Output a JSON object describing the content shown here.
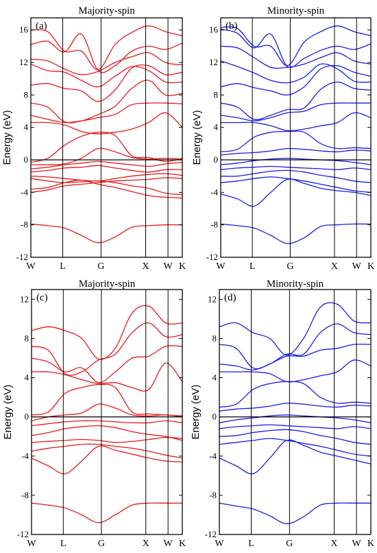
{
  "colors": {
    "majority": "#e8181b",
    "minority": "#1a1ae8",
    "axis": "#000000"
  },
  "chart_data": [
    {
      "type": "line",
      "panel": "(a)",
      "title": "Majority-spin",
      "ylabel": "Energy (eV)",
      "ylim": [
        -12,
        17.5
      ],
      "yticks": [
        -12,
        -8,
        -4,
        0,
        4,
        8,
        12,
        16
      ],
      "kpoints": [
        "W",
        "L",
        "G",
        "X",
        "W",
        "K"
      ],
      "kpos": [
        0,
        1,
        2.2,
        3.6,
        4.3,
        4.75
      ],
      "color": "majority",
      "series": [
        {
          "values": [
            -7.9,
            -8.1,
            -8.4,
            -9.3,
            -10.2,
            -9.5,
            -8.3,
            -8.1,
            -8.0,
            -8.0
          ]
        },
        {
          "values": [
            -4.0,
            -3.7,
            -3.2,
            -3.0,
            -2.8,
            -2.6,
            -2.5,
            -2.4,
            -2.2,
            -2.3
          ]
        },
        {
          "values": [
            -3.6,
            -3.4,
            -2.8,
            -2.5,
            -3.0,
            -3.4,
            -3.9,
            -4.4,
            -4.6,
            -4.7
          ]
        },
        {
          "values": [
            -2.3,
            -2.6,
            -2.8,
            -2.7,
            -2.6,
            -2.8,
            -3.2,
            -3.5,
            -4.1,
            -4.3
          ]
        },
        {
          "values": [
            -2.0,
            -2.1,
            -2.3,
            -2.5,
            -2.6,
            -2.3,
            -2.0,
            -1.8,
            -1.7,
            -1.9
          ]
        },
        {
          "values": [
            -1.5,
            -1.3,
            -1.0,
            -0.9,
            -0.7,
            -1.0,
            -1.3,
            -1.5,
            -1.2,
            -1.2
          ]
        },
        {
          "values": [
            -1.1,
            -0.9,
            -0.6,
            -0.4,
            -0.2,
            -0.4,
            -0.6,
            -0.8,
            -0.5,
            -0.3
          ]
        },
        {
          "values": [
            -0.6,
            -0.6,
            -0.5,
            0.2,
            1.4,
            1.0,
            0.3,
            0.1,
            0.2,
            0.1
          ]
        },
        {
          "values": [
            -0.3,
            0.2,
            1.8,
            2.9,
            3.4,
            3.0,
            0.5,
            0.3,
            -0.2,
            0.2
          ]
        },
        {
          "values": [
            4.6,
            4.6,
            4.3,
            3.5,
            3.2,
            3.4,
            3.8,
            4.6,
            5.8,
            4.0
          ]
        },
        {
          "values": [
            5.5,
            5.0,
            4.6,
            4.8,
            5.2,
            5.6,
            6.8,
            7.0,
            7.0,
            6.9
          ]
        },
        {
          "values": [
            7.0,
            6.5,
            4.7,
            4.8,
            5.6,
            6.6,
            8.8,
            9.8,
            8.0,
            8.2
          ]
        },
        {
          "values": [
            9.2,
            9.4,
            8.8,
            8.5,
            7.2,
            8.6,
            11.3,
            11.6,
            10.5,
            10.8
          ]
        },
        {
          "values": [
            11.8,
            11.0,
            10.8,
            9.8,
            9.0,
            10.3,
            11.5,
            11.0,
            9.6,
            9.6
          ]
        },
        {
          "values": [
            12.4,
            12.2,
            11.2,
            10.5,
            10.9,
            12.0,
            12.7,
            13.2,
            12.0,
            11.7
          ]
        },
        {
          "values": [
            14.2,
            14.6,
            13.3,
            15.5,
            11.0,
            11.6,
            13.4,
            14.0,
            13.6,
            14.4
          ]
        },
        {
          "values": [
            16.0,
            15.8,
            13.4,
            13.4,
            11.1,
            14.2,
            15.7,
            16.5,
            15.8,
            15.3
          ]
        }
      ]
    },
    {
      "type": "line",
      "panel": "(b)",
      "title": "Minority-spin",
      "ylabel": "Energy (eV)",
      "ylim": [
        -12,
        17.5
      ],
      "yticks": [
        -12,
        -8,
        -4,
        0,
        4,
        8,
        12,
        16
      ],
      "kpoints": [
        "W",
        "L",
        "G",
        "X",
        "W",
        "K"
      ],
      "kpos": [
        0,
        1,
        2.2,
        3.6,
        4.3,
        4.75
      ],
      "color": "minority",
      "series": [
        {
          "values": [
            -7.9,
            -8.1,
            -8.4,
            -9.3,
            -10.3,
            -9.6,
            -8.2,
            -8.0,
            -7.9,
            -7.9
          ]
        },
        {
          "values": [
            -4.2,
            -4.8,
            -5.7,
            -4.0,
            -2.4,
            -2.9,
            -3.5,
            -3.8,
            -4.0,
            -4.4
          ]
        },
        {
          "values": [
            -2.8,
            -2.6,
            -2.3,
            -2.1,
            -2.3,
            -2.6,
            -3.0,
            -3.4,
            -3.8,
            -4.0
          ]
        },
        {
          "values": [
            -2.0,
            -2.0,
            -1.7,
            -1.4,
            -1.3,
            -1.5,
            -1.9,
            -2.2,
            -2.6,
            -2.8
          ]
        },
        {
          "values": [
            -1.2,
            -1.0,
            -0.9,
            -0.8,
            -0.9,
            -1.0,
            -1.1,
            -1.2,
            -1.0,
            -1.2
          ]
        },
        {
          "values": [
            -0.6,
            -0.4,
            -0.1,
            0.1,
            0.2,
            0.1,
            0.0,
            -0.1,
            -0.3,
            -0.6
          ]
        },
        {
          "values": [
            0.6,
            0.8,
            0.9,
            1.1,
            1.4,
            1.3,
            1.1,
            1.0,
            1.2,
            1.1
          ]
        },
        {
          "values": [
            1.0,
            1.3,
            2.8,
            3.4,
            3.5,
            3.4,
            2.0,
            1.4,
            1.5,
            1.4
          ]
        },
        {
          "values": [
            4.6,
            4.6,
            4.6,
            4.2,
            3.6,
            3.8,
            4.2,
            4.6,
            5.8,
            5.2
          ]
        },
        {
          "values": [
            5.5,
            5.2,
            4.8,
            5.2,
            5.8,
            6.0,
            6.8,
            7.0,
            7.0,
            7.0
          ]
        },
        {
          "values": [
            7.0,
            6.5,
            5.0,
            5.5,
            6.2,
            6.4,
            8.7,
            9.6,
            8.8,
            8.6
          ]
        },
        {
          "values": [
            9.0,
            9.4,
            8.9,
            8.5,
            8.0,
            9.0,
            11.2,
            11.6,
            10.8,
            10.3
          ]
        },
        {
          "values": [
            12.2,
            11.5,
            10.7,
            9.8,
            9.5,
            10.2,
            11.8,
            11.2,
            9.7,
            9.6
          ]
        },
        {
          "values": [
            14.0,
            13.8,
            12.6,
            11.4,
            11.4,
            11.8,
            12.6,
            13.2,
            12.2,
            11.8
          ]
        },
        {
          "values": [
            16.1,
            15.6,
            13.8,
            15.5,
            11.5,
            12.5,
            13.5,
            14.0,
            13.6,
            14.3
          ]
        },
        {
          "values": [
            16.3,
            16.2,
            14.0,
            14.0,
            11.6,
            14.5,
            15.8,
            16.5,
            15.8,
            15.3
          ]
        }
      ]
    },
    {
      "type": "line",
      "panel": "(c)",
      "title": "Majority-spin",
      "ylabel": "Energy (eV)",
      "ylim": [
        -12,
        13
      ],
      "yticks": [
        -12,
        -8,
        -4,
        0,
        4,
        8,
        12
      ],
      "kpoints": [
        "W",
        "L",
        "G",
        "X",
        "W",
        "K"
      ],
      "kpos": [
        0,
        1,
        2.2,
        3.6,
        4.3,
        4.75
      ],
      "color": "majority",
      "series": [
        {
          "values": [
            -8.8,
            -9.0,
            -9.3,
            -10.0,
            -10.8,
            -10.0,
            -9.0,
            -8.8,
            -8.8,
            -8.8
          ]
        },
        {
          "values": [
            -4.2,
            -5.0,
            -5.8,
            -4.5,
            -3.0,
            -3.4,
            -3.8,
            -4.2,
            -4.5,
            -4.6
          ]
        },
        {
          "values": [
            -3.5,
            -3.2,
            -3.0,
            -2.8,
            -2.8,
            -3.0,
            -3.2,
            -3.5,
            -3.9,
            -4.2
          ]
        },
        {
          "values": [
            -2.6,
            -2.5,
            -2.4,
            -2.3,
            -2.4,
            -2.6,
            -2.5,
            -2.3,
            -2.1,
            -2.2
          ]
        },
        {
          "values": [
            -1.9,
            -1.6,
            -1.2,
            -1.0,
            -0.9,
            -1.1,
            -1.5,
            -1.8,
            -2.0,
            -2.4
          ]
        },
        {
          "values": [
            -0.9,
            -0.7,
            -0.5,
            -0.4,
            -0.4,
            -0.5,
            -0.6,
            -0.6,
            -0.4,
            -0.6
          ]
        },
        {
          "values": [
            -0.4,
            0.0,
            0.2,
            0.4,
            1.3,
            0.9,
            0.2,
            0.1,
            0.2,
            0.0
          ]
        },
        {
          "values": [
            0.2,
            0.5,
            2.4,
            3.0,
            3.3,
            3.0,
            0.5,
            0.3,
            0.2,
            0.1
          ]
        },
        {
          "values": [
            4.6,
            4.6,
            4.3,
            3.8,
            3.4,
            3.5,
            3.0,
            2.8,
            5.5,
            3.6
          ]
        },
        {
          "values": [
            6.0,
            5.6,
            4.6,
            5.0,
            3.5,
            4.6,
            6.0,
            6.2,
            7.2,
            7.2
          ]
        },
        {
          "values": [
            7.2,
            6.8,
            4.4,
            4.6,
            5.8,
            6.4,
            8.6,
            9.6,
            8.2,
            8.4
          ]
        },
        {
          "values": [
            8.8,
            9.2,
            8.8,
            8.0,
            5.9,
            7.0,
            10.6,
            11.3,
            9.6,
            9.6
          ]
        }
      ]
    },
    {
      "type": "line",
      "panel": "(d)",
      "title": "Minority-spin",
      "ylabel": "Energy (eV)",
      "ylim": [
        -12,
        13
      ],
      "yticks": [
        -12,
        -8,
        -4,
        0,
        4,
        8,
        12
      ],
      "kpoints": [
        "W",
        "L",
        "G",
        "X",
        "W",
        "K"
      ],
      "kpos": [
        0,
        1,
        2.2,
        3.6,
        4.3,
        4.75
      ],
      "color": "minority",
      "series": [
        {
          "values": [
            -8.8,
            -9.1,
            -9.4,
            -10.1,
            -10.9,
            -10.2,
            -9.0,
            -8.8,
            -8.8,
            -8.8
          ]
        },
        {
          "values": [
            -4.2,
            -5.0,
            -5.8,
            -4.2,
            -2.4,
            -2.9,
            -3.6,
            -4.0,
            -4.4,
            -4.8
          ]
        },
        {
          "values": [
            -2.8,
            -2.6,
            -2.4,
            -2.2,
            -2.4,
            -2.7,
            -3.0,
            -3.4,
            -3.8,
            -4.0
          ]
        },
        {
          "values": [
            -2.0,
            -1.9,
            -1.6,
            -1.4,
            -1.3,
            -1.5,
            -1.9,
            -2.2,
            -2.6,
            -2.8
          ]
        },
        {
          "values": [
            -1.2,
            -1.0,
            -0.9,
            -0.8,
            -0.9,
            -1.0,
            -1.1,
            -1.2,
            -1.0,
            -1.2
          ]
        },
        {
          "values": [
            -0.6,
            -0.3,
            -0.1,
            0.1,
            0.2,
            0.1,
            0.0,
            -0.1,
            -0.3,
            -0.6
          ]
        },
        {
          "values": [
            0.6,
            0.8,
            0.9,
            1.1,
            1.4,
            1.3,
            1.1,
            1.0,
            1.2,
            1.1
          ]
        },
        {
          "values": [
            1.0,
            1.3,
            2.8,
            3.4,
            3.6,
            3.4,
            2.0,
            1.4,
            1.5,
            1.4
          ]
        },
        {
          "values": [
            4.6,
            4.6,
            4.6,
            4.4,
            3.6,
            3.8,
            4.2,
            4.6,
            5.8,
            5.2
          ]
        },
        {
          "values": [
            5.4,
            5.2,
            4.8,
            5.4,
            6.2,
            6.2,
            6.8,
            7.0,
            7.4,
            7.4
          ]
        },
        {
          "values": [
            7.4,
            7.0,
            5.0,
            5.4,
            6.4,
            6.4,
            8.6,
            9.5,
            8.6,
            8.4
          ]
        },
        {
          "values": [
            9.2,
            9.6,
            8.6,
            8.0,
            6.3,
            8.0,
            11.2,
            11.5,
            9.8,
            9.6
          ]
        }
      ]
    }
  ]
}
